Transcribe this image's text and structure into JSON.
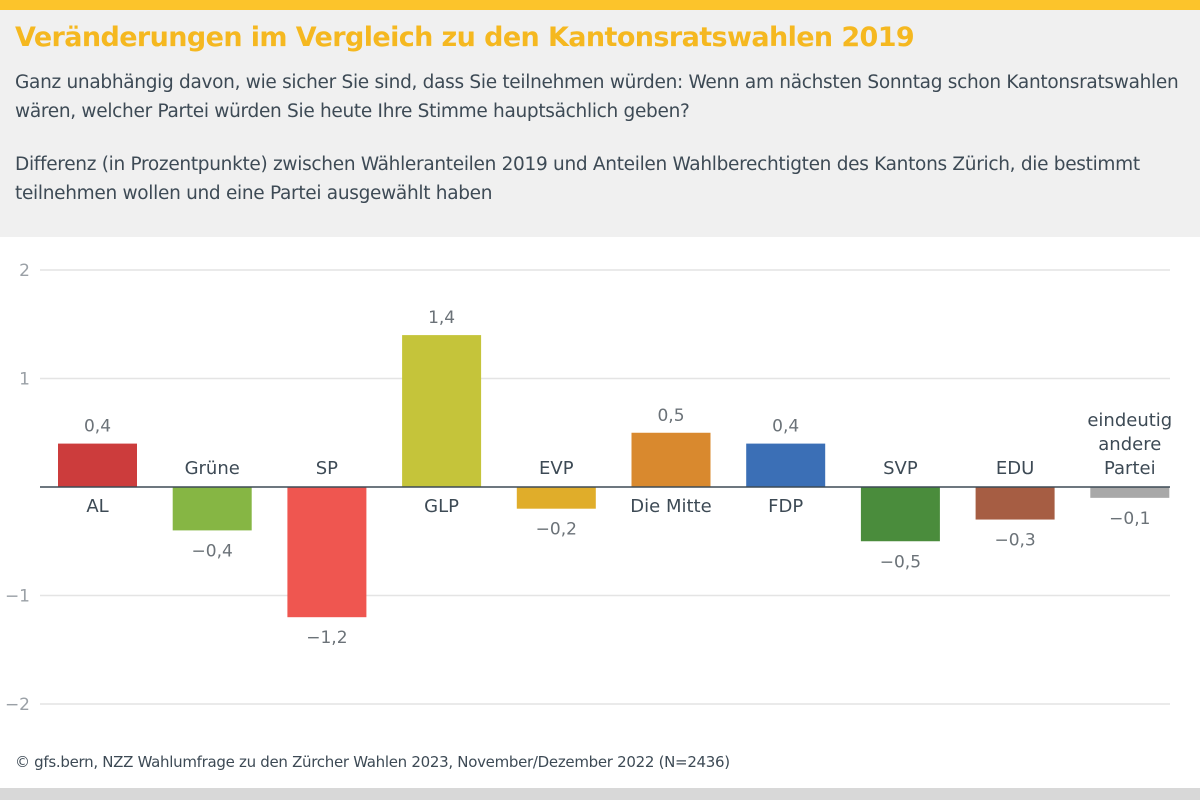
{
  "header": {
    "title": "Veränderungen im Vergleich zu den Kantonsratswahlen 2019",
    "question": "Ganz unabhängig davon, wie sicher Sie sind, dass Sie teilnehmen würden: Wenn am nächsten Sonntag schon Kantonsratswahlen wären, welcher Partei würden Sie heute Ihre Stimme hauptsächlich geben?",
    "description": "Differenz (in Prozentpunkte) zwischen Wähleranteilen 2019 und Anteilen Wahlberechtigten des Kantons Zürich, die bestimmt teilnehmen wollen und eine Partei ausgewählt haben"
  },
  "footer": {
    "source": "© gfs.bern, NZZ Wahlumfrage zu den Zürcher Wahlen 2023, November/Dezember 2022 (N=2436)"
  },
  "colors": {
    "accent": "#fcc42b",
    "title": "#f5b820"
  },
  "chart_data": {
    "type": "bar",
    "title": "Veränderungen im Vergleich zu den Kantonsratswahlen 2019",
    "xlabel": "",
    "ylabel": "",
    "ylim": [
      -2,
      2
    ],
    "yticks": [
      2,
      1,
      -1,
      -2
    ],
    "ytick_labels": [
      "2",
      "1",
      "−1",
      "−2"
    ],
    "grid": true,
    "categories": [
      "AL",
      "Grüne",
      "SP",
      "GLP",
      "EVP",
      "Die Mitte",
      "FDP",
      "SVP",
      "EDU",
      "eindeutig\nandere\nPartei"
    ],
    "values": [
      0.4,
      -0.4,
      -1.2,
      1.4,
      -0.2,
      0.5,
      0.4,
      -0.5,
      -0.3,
      -0.1
    ],
    "value_labels": [
      "0,4",
      "−0,4",
      "−1,2",
      "1,4",
      "−0,2",
      "0,5",
      "0,4",
      "−0,5",
      "−0,3",
      "−0,1"
    ],
    "colors": [
      "#cc3c3c",
      "#86b644",
      "#ef5650",
      "#c5c43a",
      "#e0ad2a",
      "#d9892e",
      "#3b6fb6",
      "#4a8c3c",
      "#a65d43",
      "#a8a8a8"
    ]
  }
}
